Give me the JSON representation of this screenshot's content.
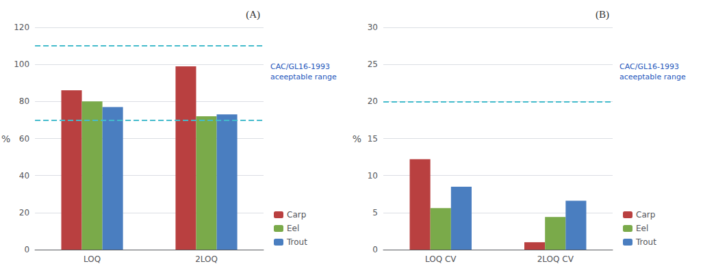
{
  "chart_data": [
    {
      "type": "bar",
      "title": "(A)",
      "categories": [
        "LOQ",
        "2LOQ"
      ],
      "series": [
        {
          "name": "Carp",
          "color": "#b94040",
          "values": [
            86,
            99
          ]
        },
        {
          "name": "Eel",
          "color": "#7aaa4a",
          "values": [
            80,
            72
          ]
        },
        {
          "name": "Trout",
          "color": "#4a7ec0",
          "values": [
            77,
            73
          ]
        }
      ],
      "ylim": [
        0,
        120
      ],
      "yticks": [
        0,
        20,
        40,
        60,
        80,
        100,
        120
      ],
      "ylabel": "%",
      "hlines": {
        "values": [
          70,
          110
        ],
        "color": "#44bbcc",
        "line_style": "dashed"
      },
      "annotation": {
        "text": "CAC/GL16-1993\naceeptable range",
        "color": "#2255bb"
      },
      "grid": true,
      "legend": "lower right"
    },
    {
      "type": "bar",
      "title": "(B)",
      "categories": [
        "LOQ CV",
        "2LOQ CV"
      ],
      "series": [
        {
          "name": "Carp",
          "color": "#b94040",
          "values": [
            12.2,
            1.0
          ]
        },
        {
          "name": "Eel",
          "color": "#7aaa4a",
          "values": [
            5.6,
            4.4
          ]
        },
        {
          "name": "Trout",
          "color": "#4a7ec0",
          "values": [
            8.5,
            6.6
          ]
        }
      ],
      "ylim": [
        0,
        30
      ],
      "yticks": [
        0,
        5,
        10,
        15,
        20,
        25,
        30
      ],
      "ylabel": "%",
      "hlines": {
        "values": [
          20
        ],
        "color": "#44bbcc",
        "line_style": "dashed"
      },
      "annotation": {
        "text": "CAC/GL16-1993\naceeptable range",
        "color": "#2255bb"
      },
      "grid": true,
      "legend": "lower right"
    }
  ]
}
